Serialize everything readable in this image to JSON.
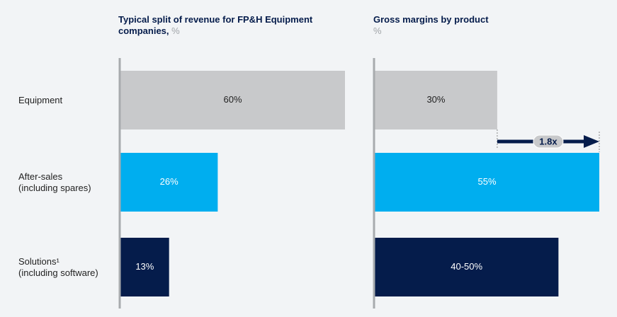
{
  "chart_data": [
    {
      "type": "hbar",
      "title": "Typical split of revenue for FP&H Equipment companies,",
      "unit": "%",
      "categories": [
        "Equipment",
        "After-sales\n(including spares)",
        "Solutions¹\n(including software)"
      ],
      "values": [
        60,
        26,
        13
      ],
      "value_labels": [
        "60%",
        "26%",
        "13%"
      ],
      "colors": [
        "#c8c9cb",
        "#00aeef",
        "#051c4b"
      ],
      "label_colors": [
        "#222222",
        "#ffffff",
        "#ffffff"
      ],
      "xlim": [
        0,
        60
      ]
    },
    {
      "type": "hbar",
      "title": "Gross margins by product",
      "unit": "%",
      "values": [
        30,
        55,
        45
      ],
      "value_labels": [
        "30%",
        "55%",
        "40-50%"
      ],
      "colors": [
        "#c8c9cb",
        "#00aeef",
        "#051c4b"
      ],
      "label_colors": [
        "#222222",
        "#ffffff",
        "#ffffff"
      ],
      "xlim": [
        0,
        55
      ],
      "annotation": "1.8x"
    }
  ]
}
